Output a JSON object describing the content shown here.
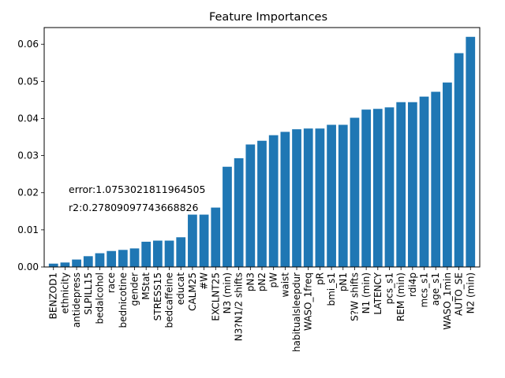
{
  "chart_data": {
    "type": "bar",
    "title": "Feature Importances",
    "xlabel": "",
    "ylabel": "",
    "ylim": [
      0,
      0.0645
    ],
    "yticks": [
      0.0,
      0.01,
      0.02,
      0.03,
      0.04,
      0.05,
      0.06
    ],
    "ytick_labels": [
      "0.00",
      "0.01",
      "0.02",
      "0.03",
      "0.04",
      "0.05",
      "0.06"
    ],
    "grid": false,
    "bar_color": "#1f77b4",
    "categories": [
      "BENZOD1",
      "ethnicity",
      "antidepress",
      "SLPILL15",
      "bedalcohol",
      "race",
      "bednicotine",
      "gender",
      "MStat",
      "STRESS15",
      "bedcaffeine",
      "educat",
      "CALM25",
      "#W",
      "EXCLNT25",
      "N3 (min)",
      "N3?N1/2 shifts",
      "pN3",
      "pN2",
      "pW",
      "waist",
      "habitualsleepdur",
      "WASO_1freq",
      "pR",
      "bmi_s1",
      "pN1",
      "S?W shifts",
      "N1 (min)",
      "LATENCY",
      "pcs_s1",
      "REM (min)",
      "rdi4p",
      "mcs_s1",
      "age_s1",
      "WASO_1min",
      "AUTO_SE",
      "N2 (min)"
    ],
    "values": [
      0.0009,
      0.0012,
      0.002,
      0.0029,
      0.0037,
      0.0043,
      0.0046,
      0.005,
      0.0068,
      0.0071,
      0.0071,
      0.008,
      0.0141,
      0.0141,
      0.016,
      0.027,
      0.0293,
      0.033,
      0.034,
      0.0355,
      0.0364,
      0.0371,
      0.0373,
      0.0373,
      0.0383,
      0.0383,
      0.0402,
      0.0424,
      0.0426,
      0.043,
      0.0444,
      0.0444,
      0.0459,
      0.0472,
      0.0497,
      0.0576,
      0.062
    ],
    "annotations": [
      "error:1.0753021811964505",
      "r2:0.27809097743668826"
    ]
  }
}
